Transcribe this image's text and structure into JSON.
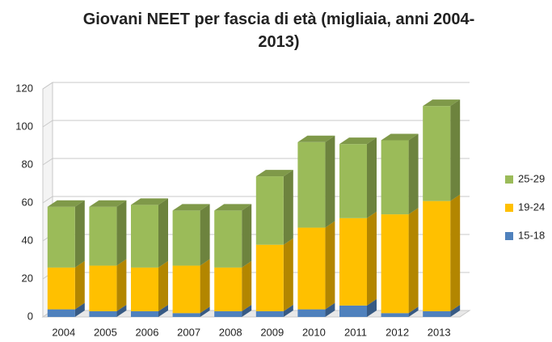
{
  "chart_data": {
    "type": "bar",
    "stacked": true,
    "title": "Giovani NEET per fascia di età (migliaia, anni 2004-2013)",
    "categories": [
      "2004",
      "2005",
      "2006",
      "2007",
      "2008",
      "2009",
      "2010",
      "2011",
      "2012",
      "2013"
    ],
    "series": [
      {
        "name": "15-18",
        "color": "#4f81bd",
        "values": [
          4,
          3,
          3,
          2,
          3,
          3,
          4,
          6,
          2,
          3
        ]
      },
      {
        "name": "19-24",
        "color": "#ffc000",
        "values": [
          22,
          24,
          23,
          25,
          23,
          35,
          43,
          46,
          52,
          58
        ]
      },
      {
        "name": "25-29",
        "color": "#9bbb59",
        "values": [
          32,
          31,
          33,
          29,
          30,
          36,
          45,
          39,
          39,
          50
        ]
      }
    ],
    "ylim": [
      0,
      120
    ],
    "yticks": [
      0,
      20,
      40,
      60,
      80,
      100,
      120
    ],
    "grid": true,
    "legend": "right"
  }
}
